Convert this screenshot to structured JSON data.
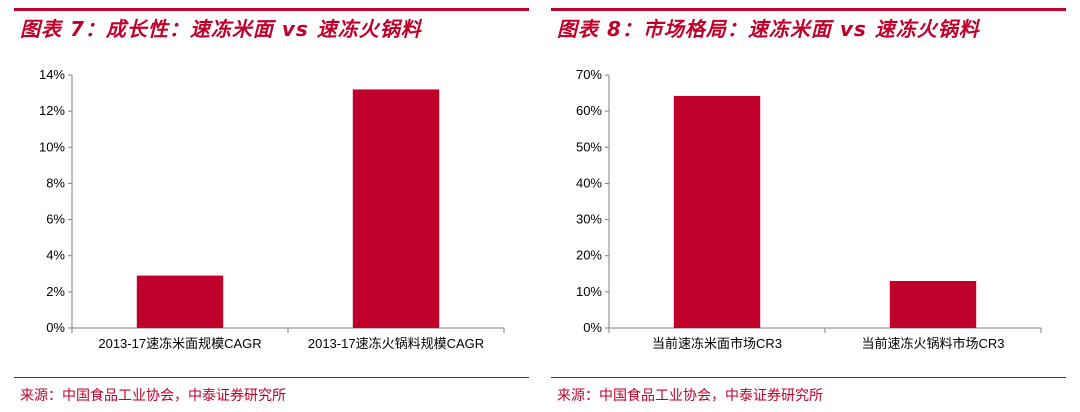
{
  "colors": {
    "accent": "#c0002a",
    "bar": "#c0002a",
    "axis": "#808080"
  },
  "charts": [
    {
      "title": "图表 7：成长性：速冻米面 vs 速冻火锅料",
      "source": "来源：中国食品工业协会，中泰证券研究所"
    },
    {
      "title": "图表 8：市场格局：速冻米面 vs 速冻火锅料",
      "source": "来源：中国食品工业协会，中泰证券研究所"
    }
  ],
  "chart_data": [
    {
      "type": "bar",
      "title": "成长性：速冻米面 vs 速冻火锅料",
      "categories": [
        "2013-17速冻米面规模CAGR",
        "2013-17速冻火锅料规模CAGR"
      ],
      "values": [
        2.9,
        13.2
      ],
      "unit": "%",
      "ylim": [
        0,
        14
      ],
      "yticks": [
        0,
        2,
        4,
        6,
        8,
        10,
        12,
        14
      ],
      "grid": false
    },
    {
      "type": "bar",
      "title": "市场格局：速冻米面 vs 速冻火锅料",
      "categories": [
        "当前速冻米面市场CR3",
        "当前速冻火锅料市场CR3"
      ],
      "values": [
        64.2,
        13.0
      ],
      "unit": "%",
      "ylim": [
        0,
        70
      ],
      "yticks": [
        0,
        10,
        20,
        30,
        40,
        50,
        60,
        70
      ],
      "grid": false
    }
  ]
}
